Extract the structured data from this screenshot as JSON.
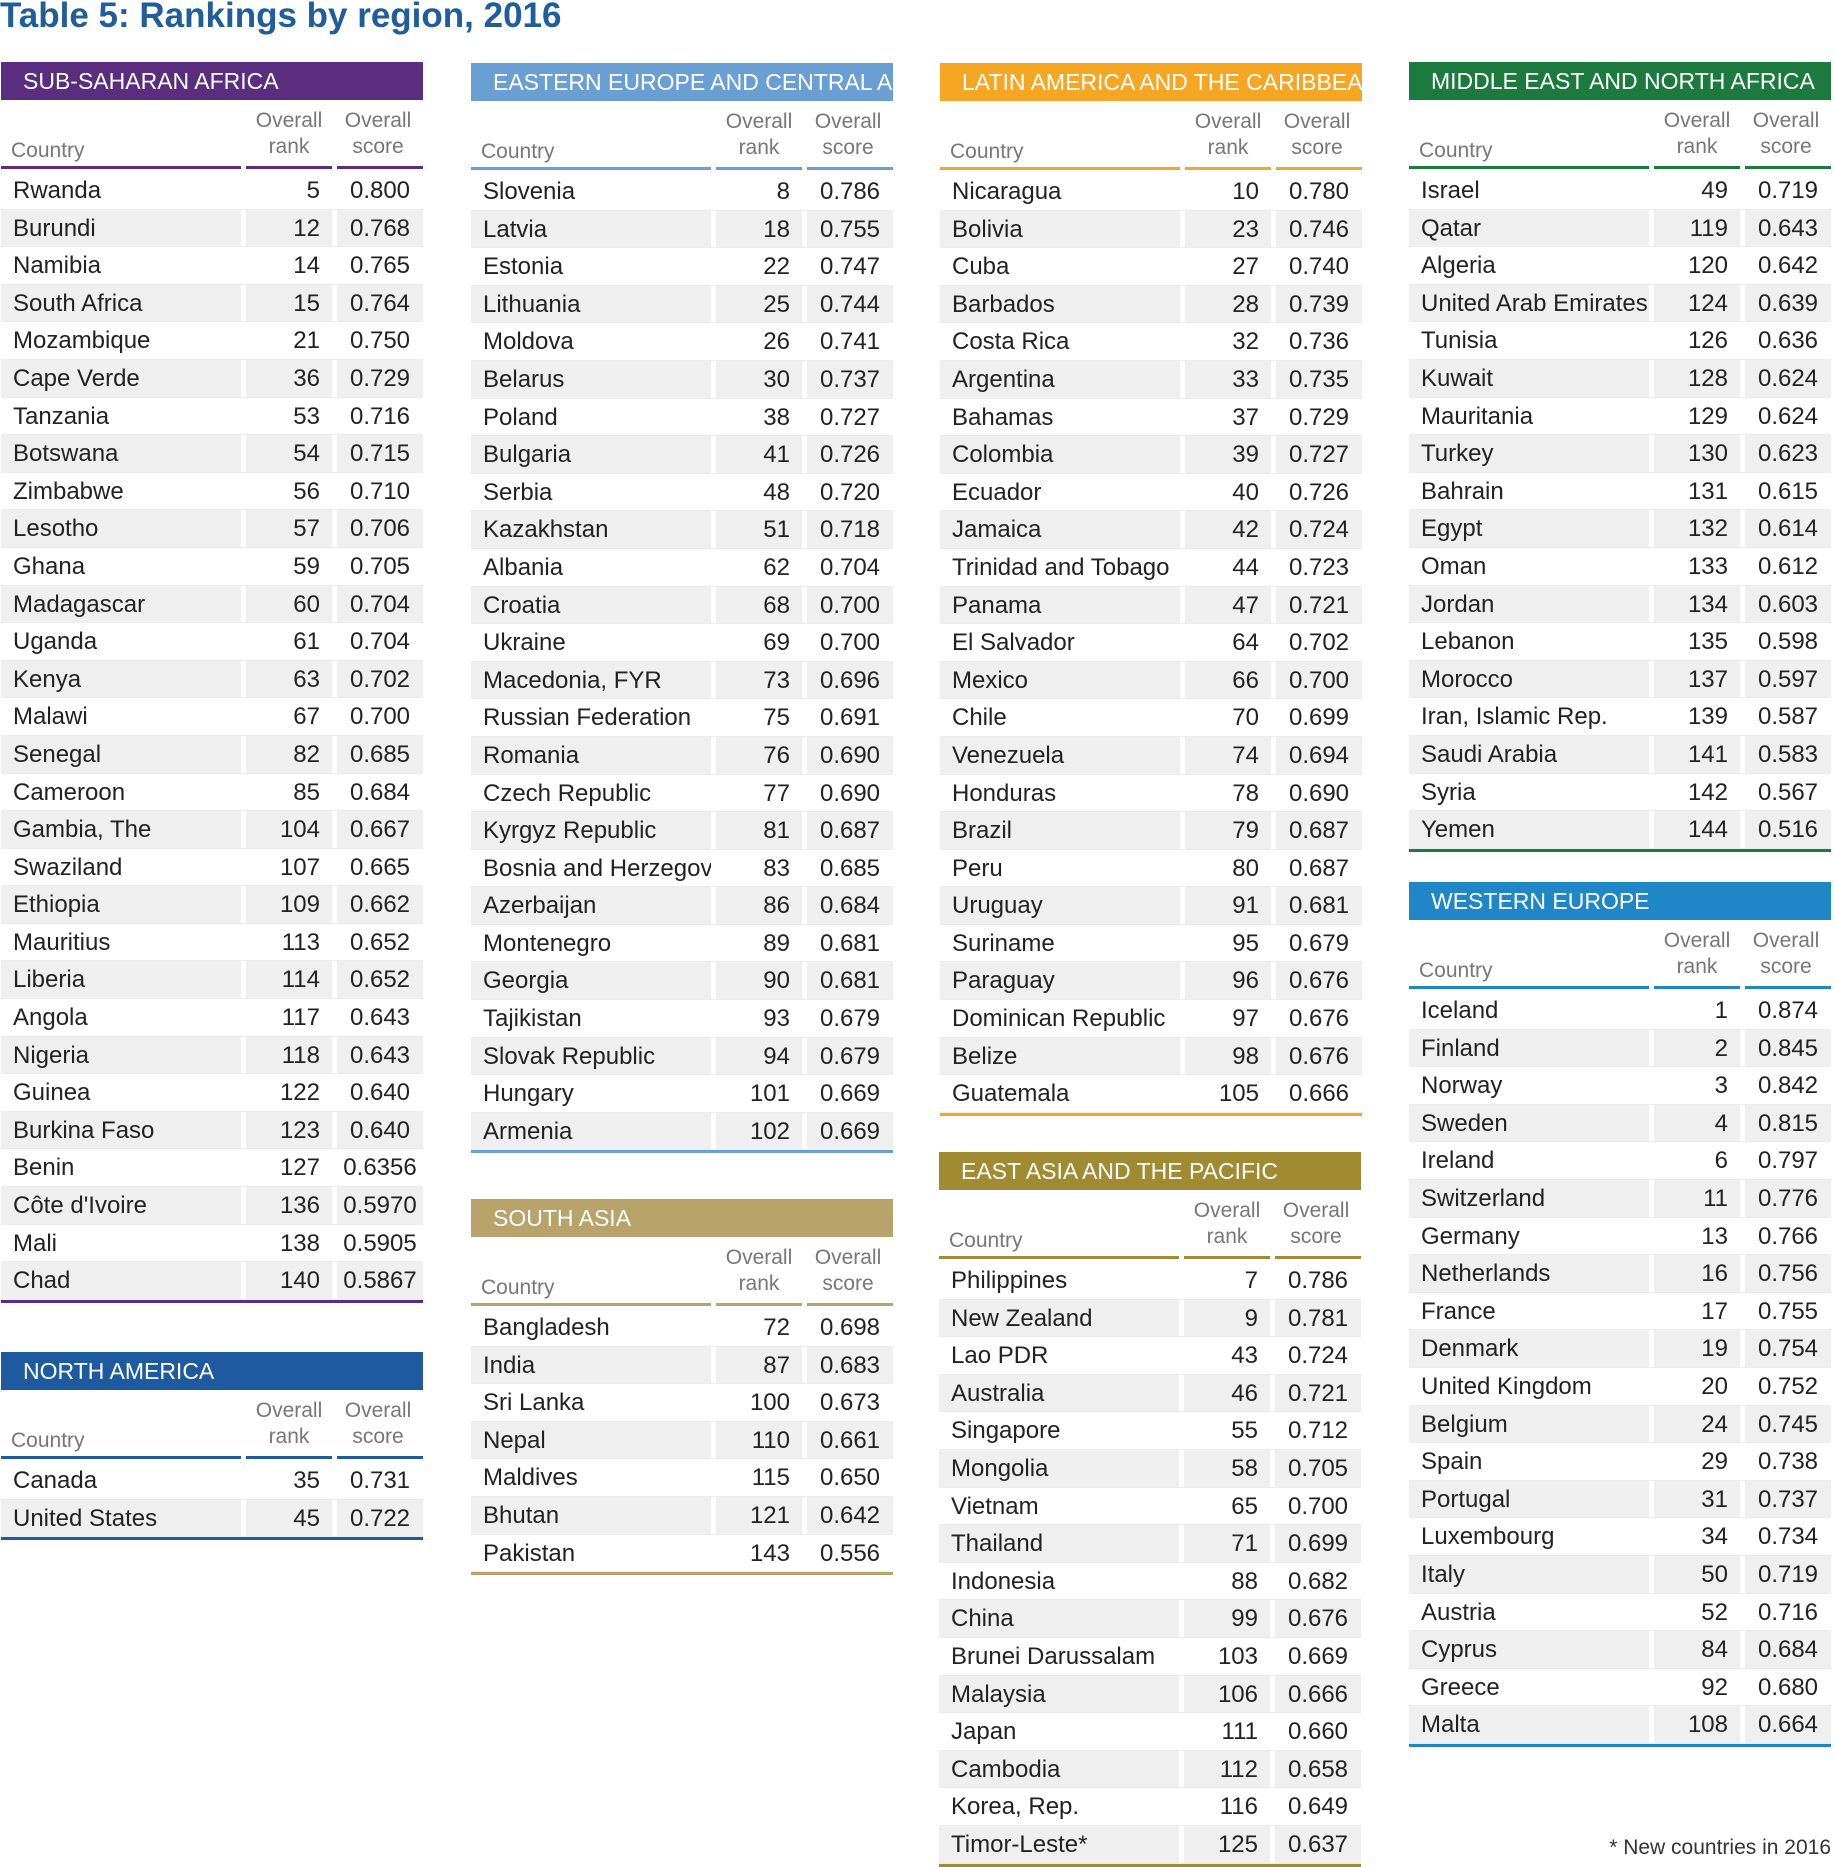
{
  "title": "Table 5: Rankings by region, 2016",
  "footnote": "* New countries in 2016",
  "columns": {
    "country": "Country",
    "rank": "Overall\nrank",
    "score": "Overall\nscore"
  },
  "regions": [
    {
      "name": "SUB-SAHARAN AFRICA",
      "color": "#5b2d7e",
      "header_style": "solid",
      "rows": [
        [
          "Rwanda",
          "5",
          "0.800"
        ],
        [
          "Burundi",
          "12",
          "0.768"
        ],
        [
          "Namibia",
          "14",
          "0.765"
        ],
        [
          "South Africa",
          "15",
          "0.764"
        ],
        [
          "Mozambique",
          "21",
          "0.750"
        ],
        [
          "Cape Verde",
          "36",
          "0.729"
        ],
        [
          "Tanzania",
          "53",
          "0.716"
        ],
        [
          "Botswana",
          "54",
          "0.715"
        ],
        [
          "Zimbabwe",
          "56",
          "0.710"
        ],
        [
          "Lesotho",
          "57",
          "0.706"
        ],
        [
          "Ghana",
          "59",
          "0.705"
        ],
        [
          "Madagascar",
          "60",
          "0.704"
        ],
        [
          "Uganda",
          "61",
          "0.704"
        ],
        [
          "Kenya",
          "63",
          "0.702"
        ],
        [
          "Malawi",
          "67",
          "0.700"
        ],
        [
          "Senegal",
          "82",
          "0.685"
        ],
        [
          "Cameroon",
          "85",
          "0.684"
        ],
        [
          "Gambia, The",
          "104",
          "0.667"
        ],
        [
          "Swaziland",
          "107",
          "0.665"
        ],
        [
          "Ethiopia",
          "109",
          "0.662"
        ],
        [
          "Mauritius",
          "113",
          "0.652"
        ],
        [
          "Liberia",
          "114",
          "0.652"
        ],
        [
          "Angola",
          "117",
          "0.643"
        ],
        [
          "Nigeria",
          "118",
          "0.643"
        ],
        [
          "Guinea",
          "122",
          "0.640"
        ],
        [
          "Burkina Faso",
          "123",
          "0.640"
        ],
        [
          "Benin",
          "127",
          "0.6356"
        ],
        [
          "Côte d'Ivoire",
          "136",
          "0.5970"
        ],
        [
          "Mali",
          "138",
          "0.5905"
        ],
        [
          "Chad",
          "140",
          "0.5867"
        ]
      ]
    },
    {
      "name": "NORTH AMERICA",
      "color": "#1e5aa0",
      "rows": [
        [
          "Canada",
          "35",
          "0.731"
        ],
        [
          "United States",
          "45",
          "0.722"
        ]
      ]
    },
    {
      "name": "EASTERN EUROPE AND CENTRAL ASIA",
      "color": "#6a9fd4",
      "rows": [
        [
          "Slovenia",
          "8",
          "0.786"
        ],
        [
          "Latvia",
          "18",
          "0.755"
        ],
        [
          "Estonia",
          "22",
          "0.747"
        ],
        [
          "Lithuania",
          "25",
          "0.744"
        ],
        [
          "Moldova",
          "26",
          "0.741"
        ],
        [
          "Belarus",
          "30",
          "0.737"
        ],
        [
          "Poland",
          "38",
          "0.727"
        ],
        [
          "Bulgaria",
          "41",
          "0.726"
        ],
        [
          "Serbia",
          "48",
          "0.720"
        ],
        [
          "Kazakhstan",
          "51",
          "0.718"
        ],
        [
          "Albania",
          "62",
          "0.704"
        ],
        [
          "Croatia",
          "68",
          "0.700"
        ],
        [
          "Ukraine",
          "69",
          "0.700"
        ],
        [
          "Macedonia, FYR",
          "73",
          "0.696"
        ],
        [
          "Russian Federation",
          "75",
          "0.691"
        ],
        [
          "Romania",
          "76",
          "0.690"
        ],
        [
          "Czech Republic",
          "77",
          "0.690"
        ],
        [
          "Kyrgyz Republic",
          "81",
          "0.687"
        ],
        [
          "Bosnia and Herzegovina*",
          "83",
          "0.685"
        ],
        [
          "Azerbaijan",
          "86",
          "0.684"
        ],
        [
          "Montenegro",
          "89",
          "0.681"
        ],
        [
          "Georgia",
          "90",
          "0.681"
        ],
        [
          "Tajikistan",
          "93",
          "0.679"
        ],
        [
          "Slovak Republic",
          "94",
          "0.679"
        ],
        [
          "Hungary",
          "101",
          "0.669"
        ],
        [
          "Armenia",
          "102",
          "0.669"
        ]
      ]
    },
    {
      "name": "SOUTH ASIA",
      "color": "#b8a36a",
      "rows": [
        [
          "Bangladesh",
          "72",
          "0.698"
        ],
        [
          "India",
          "87",
          "0.683"
        ],
        [
          "Sri Lanka",
          "100",
          "0.673"
        ],
        [
          "Nepal",
          "110",
          "0.661"
        ],
        [
          "Maldives",
          "115",
          "0.650"
        ],
        [
          "Bhutan",
          "121",
          "0.642"
        ],
        [
          "Pakistan",
          "143",
          "0.556"
        ]
      ]
    },
    {
      "name": "LATIN AMERICA AND THE CARIBBEAN",
      "color": "#f5a623",
      "rows": [
        [
          "Nicaragua",
          "10",
          "0.780"
        ],
        [
          "Bolivia",
          "23",
          "0.746"
        ],
        [
          "Cuba",
          "27",
          "0.740"
        ],
        [
          "Barbados",
          "28",
          "0.739"
        ],
        [
          "Costa Rica",
          "32",
          "0.736"
        ],
        [
          "Argentina",
          "33",
          "0.735"
        ],
        [
          "Bahamas",
          "37",
          "0.729"
        ],
        [
          "Colombia",
          "39",
          "0.727"
        ],
        [
          "Ecuador",
          "40",
          "0.726"
        ],
        [
          "Jamaica",
          "42",
          "0.724"
        ],
        [
          "Trinidad and Tobago",
          "44",
          "0.723"
        ],
        [
          "Panama",
          "47",
          "0.721"
        ],
        [
          "El Salvador",
          "64",
          "0.702"
        ],
        [
          "Mexico",
          "66",
          "0.700"
        ],
        [
          "Chile",
          "70",
          "0.699"
        ],
        [
          "Venezuela",
          "74",
          "0.694"
        ],
        [
          "Honduras",
          "78",
          "0.690"
        ],
        [
          "Brazil",
          "79",
          "0.687"
        ],
        [
          "Peru",
          "80",
          "0.687"
        ],
        [
          "Uruguay",
          "91",
          "0.681"
        ],
        [
          "Suriname",
          "95",
          "0.679"
        ],
        [
          "Paraguay",
          "96",
          "0.676"
        ],
        [
          "Dominican Republic",
          "97",
          "0.676"
        ],
        [
          "Belize",
          "98",
          "0.676"
        ],
        [
          "Guatemala",
          "105",
          "0.666"
        ]
      ]
    },
    {
      "name": "EAST ASIA AND THE PACIFIC",
      "color": "#a08a32",
      "rows": [
        [
          "Philippines",
          "7",
          "0.786"
        ],
        [
          "New Zealand",
          "9",
          "0.781"
        ],
        [
          "Lao PDR",
          "43",
          "0.724"
        ],
        [
          "Australia",
          "46",
          "0.721"
        ],
        [
          "Singapore",
          "55",
          "0.712"
        ],
        [
          "Mongolia",
          "58",
          "0.705"
        ],
        [
          "Vietnam",
          "65",
          "0.700"
        ],
        [
          "Thailand",
          "71",
          "0.699"
        ],
        [
          "Indonesia",
          "88",
          "0.682"
        ],
        [
          "China",
          "99",
          "0.676"
        ],
        [
          "Brunei Darussalam",
          "103",
          "0.669"
        ],
        [
          "Malaysia",
          "106",
          "0.666"
        ],
        [
          "Japan",
          "111",
          "0.660"
        ],
        [
          "Cambodia",
          "112",
          "0.658"
        ],
        [
          "Korea, Rep.",
          "116",
          "0.649"
        ],
        [
          "Timor-Leste*",
          "125",
          "0.637"
        ]
      ]
    },
    {
      "name": "MIDDLE EAST AND NORTH AFRICA",
      "color": "#1c7a3e",
      "rows": [
        [
          "Israel",
          "49",
          "0.719"
        ],
        [
          "Qatar",
          "119",
          "0.643"
        ],
        [
          "Algeria",
          "120",
          "0.642"
        ],
        [
          "United Arab Emirates",
          "124",
          "0.639"
        ],
        [
          "Tunisia",
          "126",
          "0.636"
        ],
        [
          "Kuwait",
          "128",
          "0.624"
        ],
        [
          "Mauritania",
          "129",
          "0.624"
        ],
        [
          "Turkey",
          "130",
          "0.623"
        ],
        [
          "Bahrain",
          "131",
          "0.615"
        ],
        [
          "Egypt",
          "132",
          "0.614"
        ],
        [
          "Oman",
          "133",
          "0.612"
        ],
        [
          "Jordan",
          "134",
          "0.603"
        ],
        [
          "Lebanon",
          "135",
          "0.598"
        ],
        [
          "Morocco",
          "137",
          "0.597"
        ],
        [
          "Iran, Islamic Rep.",
          "139",
          "0.587"
        ],
        [
          "Saudi Arabia",
          "141",
          "0.583"
        ],
        [
          "Syria",
          "142",
          "0.567"
        ],
        [
          "Yemen",
          "144",
          "0.516"
        ]
      ]
    },
    {
      "name": "WESTERN EUROPE",
      "color": "#1f86c8",
      "rows": [
        [
          "Iceland",
          "1",
          "0.874"
        ],
        [
          "Finland",
          "2",
          "0.845"
        ],
        [
          "Norway",
          "3",
          "0.842"
        ],
        [
          "Sweden",
          "4",
          "0.815"
        ],
        [
          "Ireland",
          "6",
          "0.797"
        ],
        [
          "Switzerland",
          "11",
          "0.776"
        ],
        [
          "Germany",
          "13",
          "0.766"
        ],
        [
          "Netherlands",
          "16",
          "0.756"
        ],
        [
          "France",
          "17",
          "0.755"
        ],
        [
          "Denmark",
          "19",
          "0.754"
        ],
        [
          "United Kingdom",
          "20",
          "0.752"
        ],
        [
          "Belgium",
          "24",
          "0.745"
        ],
        [
          "Spain",
          "29",
          "0.738"
        ],
        [
          "Portugal",
          "31",
          "0.737"
        ],
        [
          "Luxembourg",
          "34",
          "0.734"
        ],
        [
          "Italy",
          "50",
          "0.719"
        ],
        [
          "Austria",
          "52",
          "0.716"
        ],
        [
          "Cyprus",
          "84",
          "0.684"
        ],
        [
          "Greece",
          "92",
          "0.680"
        ],
        [
          "Malta",
          "108",
          "0.664"
        ]
      ]
    }
  ]
}
